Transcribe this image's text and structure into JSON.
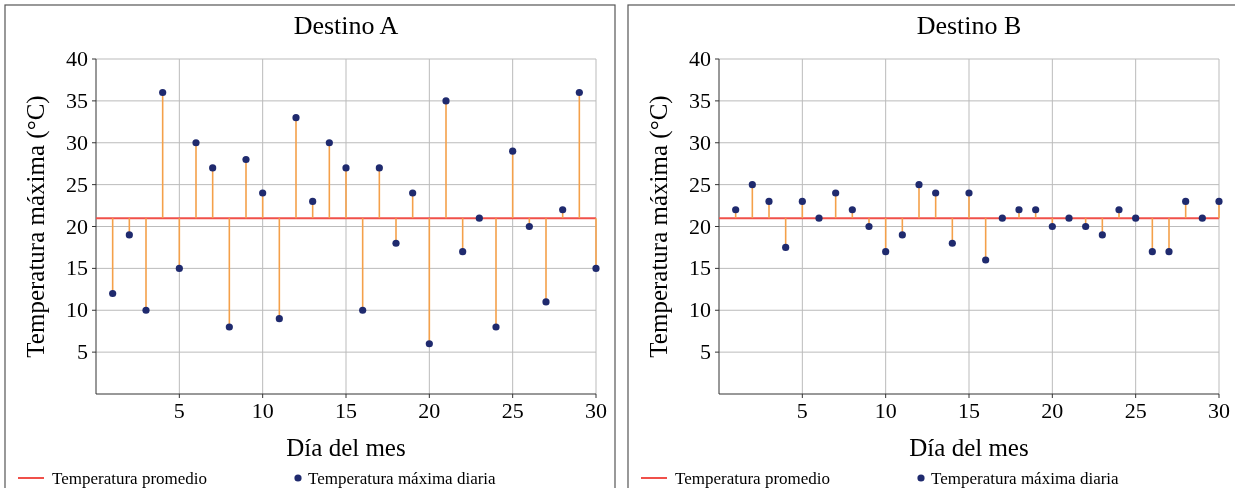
{
  "chart_data": [
    {
      "type": "lollipop",
      "title": "Destino A",
      "xlabel": "Día del mes",
      "ylabel": "Temperatura máxima (°C)",
      "xlim": [
        0,
        30
      ],
      "xticks": [
        5,
        10,
        15,
        20,
        25,
        30
      ],
      "ylim": [
        0,
        40
      ],
      "yticks": [
        5,
        10,
        15,
        20,
        25,
        30,
        35,
        40
      ],
      "grid": true,
      "legend": "bottom",
      "marker": "circle",
      "x": [
        1,
        2,
        3,
        4,
        5,
        6,
        7,
        8,
        9,
        10,
        11,
        12,
        13,
        14,
        15,
        16,
        17,
        18,
        19,
        20,
        21,
        22,
        23,
        24,
        25,
        26,
        27,
        28,
        29,
        30
      ],
      "ref_lines": [
        {
          "axis": "y",
          "value": 21,
          "label": "Temperatura promedio",
          "color": "#f0504a"
        }
      ],
      "series": [
        {
          "name": "Temperatura máxima diaria",
          "color": "#1f2a6e",
          "values": [
            12,
            19,
            10,
            36,
            15,
            30,
            27,
            8,
            28,
            24,
            9,
            33,
            23,
            30,
            27,
            10,
            27,
            18,
            24,
            6,
            35,
            17,
            21,
            8,
            29,
            20,
            11,
            22,
            36,
            15
          ],
          "errors": [
            [
              12,
              21
            ],
            [
              19,
              21
            ],
            [
              10,
              21
            ],
            [
              21,
              36
            ],
            [
              15,
              21
            ],
            [
              21,
              30
            ],
            [
              21,
              27
            ],
            [
              8,
              21
            ],
            [
              21,
              28
            ],
            [
              21,
              24
            ],
            [
              9,
              21
            ],
            [
              21,
              33
            ],
            [
              21,
              23
            ],
            [
              21,
              30
            ],
            [
              21,
              27
            ],
            [
              10,
              21
            ],
            [
              21,
              27
            ],
            [
              18,
              21
            ],
            [
              21,
              24
            ],
            [
              6,
              21
            ],
            [
              21,
              35
            ],
            [
              17,
              21
            ],
            null,
            [
              8,
              21
            ],
            [
              21,
              29
            ],
            [
              20,
              21
            ],
            [
              11,
              21
            ],
            [
              21,
              22
            ],
            [
              21,
              36
            ],
            [
              15,
              21
            ]
          ]
        }
      ]
    },
    {
      "type": "lollipop",
      "title": "Destino B",
      "xlabel": "Día del mes",
      "ylabel": "Temperatura máxima (°C)",
      "xlim": [
        0,
        30
      ],
      "xticks": [
        5,
        10,
        15,
        20,
        25,
        30
      ],
      "ylim": [
        0,
        40
      ],
      "yticks": [
        5,
        10,
        15,
        20,
        25,
        30,
        35,
        40
      ],
      "grid": true,
      "legend": "bottom",
      "marker": "circle",
      "x": [
        1,
        2,
        3,
        4,
        5,
        6,
        7,
        8,
        9,
        10,
        11,
        12,
        13,
        14,
        15,
        16,
        17,
        18,
        19,
        20,
        21,
        22,
        23,
        24,
        25,
        26,
        27,
        28,
        29,
        30
      ],
      "ref_lines": [
        {
          "axis": "y",
          "value": 21,
          "label": "Temperatura promedio",
          "color": "#f0504a"
        }
      ],
      "series": [
        {
          "name": "Temperatura máxima diaria",
          "color": "#1f2a6e",
          "values": [
            22,
            25,
            23,
            17.5,
            23,
            21,
            24,
            22,
            20,
            17,
            19,
            25,
            24,
            18,
            24,
            16,
            21,
            22,
            22,
            20,
            21,
            20,
            19,
            22,
            21,
            17,
            17,
            23,
            21,
            23
          ],
          "errors": [
            [
              21,
              22
            ],
            [
              21,
              25
            ],
            [
              21,
              23
            ],
            [
              17.5,
              21
            ],
            [
              21,
              23
            ],
            null,
            [
              21,
              24
            ],
            [
              21,
              22
            ],
            [
              20,
              21
            ],
            [
              17,
              21
            ],
            [
              19,
              21
            ],
            [
              21,
              25
            ],
            [
              21,
              24
            ],
            [
              18,
              21
            ],
            [
              21,
              24
            ],
            [
              16,
              21
            ],
            null,
            [
              21,
              22
            ],
            [
              21,
              22
            ],
            [
              20,
              21
            ],
            null,
            [
              20,
              21
            ],
            [
              19,
              21
            ],
            [
              21,
              22
            ],
            null,
            [
              17,
              21
            ],
            [
              17,
              21
            ],
            [
              21,
              23
            ],
            null,
            [
              21,
              23
            ]
          ]
        }
      ]
    }
  ]
}
